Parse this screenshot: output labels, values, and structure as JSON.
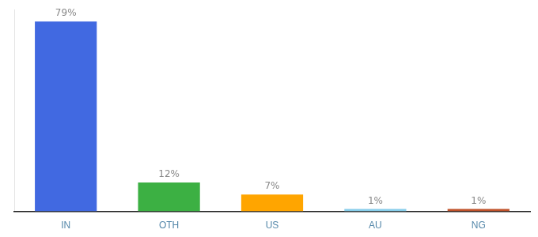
{
  "chart_data": {
    "type": "bar",
    "categories": [
      "IN",
      "OTH",
      "US",
      "AU",
      "NG"
    ],
    "values": [
      79,
      12,
      7,
      1,
      1
    ],
    "value_labels": [
      "79%",
      "12%",
      "7%",
      "1%",
      "1%"
    ],
    "colors": [
      "#4169e1",
      "#3cb043",
      "#ffa500",
      "#87ceeb",
      "#c0522a"
    ],
    "ylim": [
      0,
      84
    ],
    "data_labels": true,
    "tick_labels": "x",
    "grid": false
  }
}
